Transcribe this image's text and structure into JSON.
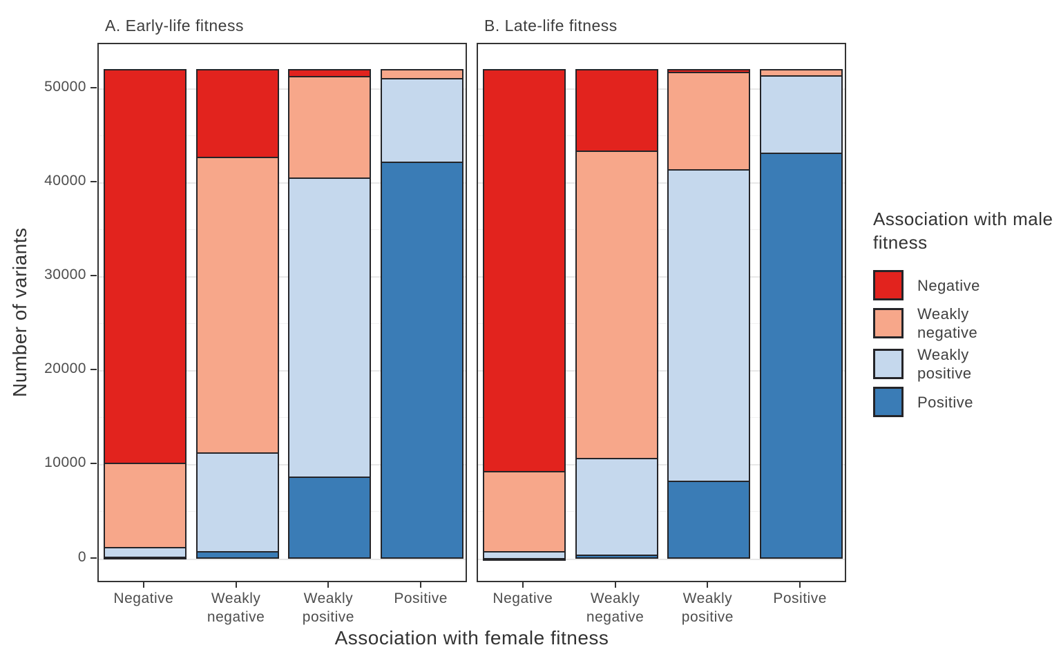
{
  "figure": {
    "y_axis": {
      "title": "Number of variants",
      "ticks": [
        0,
        10000,
        20000,
        30000,
        40000,
        50000
      ],
      "minor_ticks": [
        5000,
        15000,
        25000,
        35000,
        45000
      ],
      "limits": [
        0,
        52150
      ]
    },
    "x_axis": {
      "title": "Association with female fitness",
      "categories": [
        "Negative",
        "Weakly negative",
        "Weakly positive",
        "Positive"
      ],
      "tick_labels": [
        "Negative",
        "Weakly\nnegative",
        "Weakly\npositive",
        "Positive"
      ]
    },
    "legend": {
      "title": "Association with male fitness",
      "entries": [
        {
          "label": "Negative",
          "display": "Negative",
          "color": "#e2231e"
        },
        {
          "label": "Weakly negative",
          "display": "Weakly\nnegative",
          "color": "#f7a78a"
        },
        {
          "label": "Weakly positive",
          "display": "Weakly\npositive",
          "color": "#c5d8ed"
        },
        {
          "label": "Positive",
          "display": "Positive",
          "color": "#3a7cb6"
        }
      ]
    },
    "colors": {
      "segment_stroke": "#242428",
      "panel_border": "#333333",
      "grid_major": "#e7e7e7",
      "grid_minor": "#f0f0f0",
      "tick_text": "#4d4d4d",
      "axis_text": "#333333"
    }
  },
  "chart_data": [
    {
      "type": "bar",
      "stacked": true,
      "title": "A. Early-life fitness",
      "categories": [
        "Negative",
        "Weakly negative",
        "Weakly positive",
        "Positive"
      ],
      "series": [
        {
          "name": "Negative",
          "values": [
            41890,
            9350,
            750,
            0
          ]
        },
        {
          "name": "Weakly negative",
          "values": [
            9010,
            31420,
            10800,
            1000
          ]
        },
        {
          "name": "Weakly positive",
          "values": [
            1000,
            10510,
            31830,
            8870
          ]
        },
        {
          "name": "Positive",
          "values": [
            250,
            870,
            8770,
            42280
          ]
        }
      ],
      "bar_totals": [
        52150,
        52150,
        52150,
        52150
      ],
      "xlabel": "Association with female fitness",
      "ylabel": "Number of variants",
      "ylim": [
        0,
        52150
      ],
      "grid": true,
      "legend_position": "right"
    },
    {
      "type": "bar",
      "stacked": true,
      "title": "B. Late-life fitness",
      "categories": [
        "Negative",
        "Weakly negative",
        "Weakly positive",
        "Positive"
      ],
      "series": [
        {
          "name": "Negative",
          "values": [
            42790,
            8690,
            350,
            0
          ]
        },
        {
          "name": "Weakly negative",
          "values": [
            8550,
            32690,
            10370,
            710
          ]
        },
        {
          "name": "Weakly positive",
          "values": [
            710,
            10320,
            33100,
            8240
          ]
        },
        {
          "name": "Positive",
          "values": [
            100,
            450,
            8330,
            43200
          ]
        }
      ],
      "bar_totals": [
        52150,
        52150,
        52150,
        52150
      ],
      "xlabel": "Association with female fitness",
      "ylabel": "Number of variants",
      "ylim": [
        0,
        52150
      ],
      "grid": true,
      "legend_position": "right"
    }
  ]
}
